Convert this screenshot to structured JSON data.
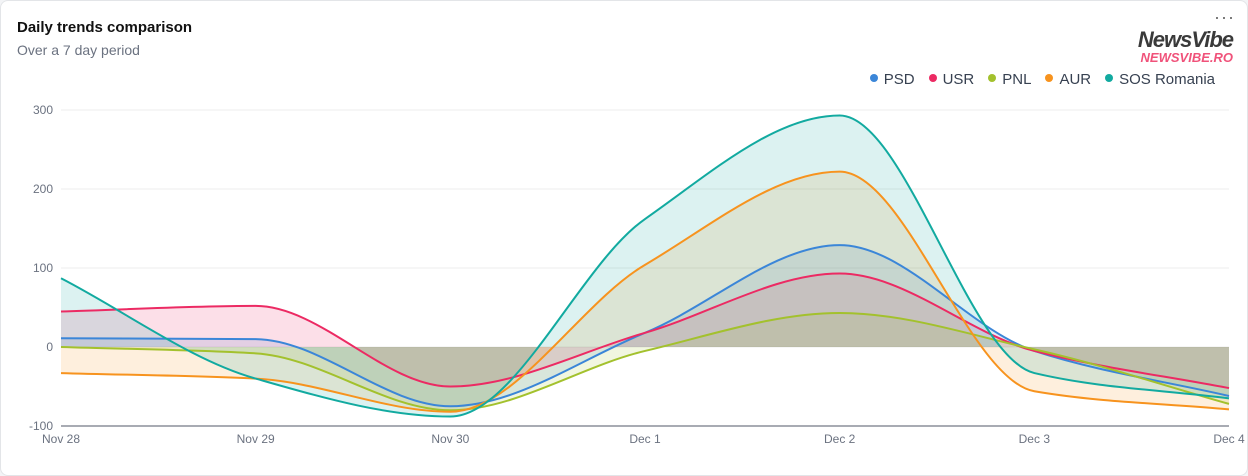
{
  "header": {
    "title": "Daily trends comparison",
    "subtitle": "Over a 7 day period",
    "menu": "···"
  },
  "logo": {
    "name": "NewsVibe",
    "url": "NEWSVIBE.RO"
  },
  "chart_data": {
    "type": "area",
    "title": "Daily trends comparison",
    "subtitle": "Over a 7 day period",
    "categories": [
      "Nov 28",
      "Nov 29",
      "Nov 30",
      "Dec 1",
      "Dec 2",
      "Dec 3",
      "Dec 4"
    ],
    "ylim": [
      -100,
      300
    ],
    "yticks": [
      -100,
      0,
      100,
      200,
      300
    ],
    "grid": true,
    "legend": "top-right",
    "series": [
      {
        "name": "PSD",
        "color": "#3b86d8",
        "values": [
          11,
          10,
          -75,
          18,
          129,
          -5,
          -62
        ]
      },
      {
        "name": "USR",
        "color": "#ec2a63",
        "values": [
          45,
          52,
          -50,
          18,
          93,
          -5,
          -52
        ]
      },
      {
        "name": "PNL",
        "color": "#a3c12d",
        "values": [
          0,
          -8,
          -80,
          -5,
          43,
          -3,
          -72
        ]
      },
      {
        "name": "AUR",
        "color": "#f7931e",
        "values": [
          -33,
          -40,
          -82,
          104,
          222,
          -56,
          -79
        ]
      },
      {
        "name": "SOS Romania",
        "color": "#12aaa0",
        "values": [
          87,
          -40,
          -88,
          162,
          293,
          -33,
          -65
        ]
      }
    ]
  }
}
